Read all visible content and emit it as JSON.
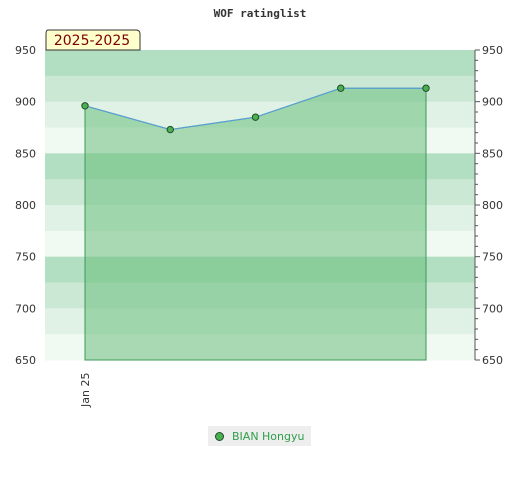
{
  "chart_data": {
    "type": "area",
    "title": "WOF ratinglist",
    "period_badge": "2025-2025",
    "x_tick_labels": [
      "Jan 25"
    ],
    "ylim": [
      650,
      950
    ],
    "y_ticks": [
      650,
      700,
      750,
      800,
      850,
      900,
      950
    ],
    "series": [
      {
        "name": "BIAN Hongyu",
        "values": [
          896,
          873,
          885,
          913,
          913
        ]
      }
    ],
    "grid": true,
    "legend_position": "bottom-center",
    "colors": {
      "line": "#5a9fd4",
      "area_fill": "#6bbf7e",
      "marker_fill": "#4caf50",
      "marker_stroke": "#1e4d28",
      "badge_fill": "#ffffcc",
      "badge_text": "#7a0000",
      "legend_text": "#2e9e4a"
    }
  }
}
